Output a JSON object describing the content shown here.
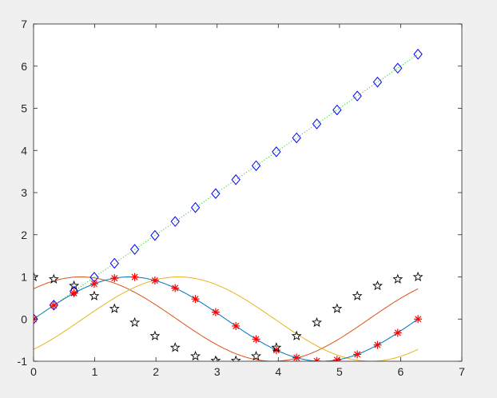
{
  "chart_data": {
    "type": "line",
    "title": "",
    "xlabel": "",
    "ylabel": "",
    "xlim": [
      0,
      7
    ],
    "ylim": [
      -1,
      7
    ],
    "x_ticks": [
      0,
      1,
      2,
      3,
      4,
      5,
      6,
      7
    ],
    "y_ticks": [
      -1,
      0,
      1,
      2,
      3,
      4,
      5,
      6,
      7
    ],
    "grid": false,
    "legend": "none",
    "colors": {
      "figure_background": "#f0f0f0",
      "axes_background": "#ffffff",
      "axis": "#262626"
    },
    "curve_x_range": [
      0,
      6.2832
    ],
    "series": [
      {
        "id": "linear",
        "formula": "y = x",
        "line": {
          "color": "#33cc33",
          "style": "dotted"
        },
        "marker": {
          "shape": "diamond",
          "color": "#0000ff"
        },
        "x": [
          0,
          0.3307,
          0.6614,
          0.992,
          1.3227,
          1.6534,
          1.9841,
          2.3148,
          2.6455,
          2.9762,
          3.3069,
          3.6376,
          3.9683,
          4.299,
          4.6296,
          4.9603,
          5.291,
          5.6217,
          5.9524,
          6.2832
        ],
        "y": [
          0,
          0.3307,
          0.6614,
          0.992,
          1.3227,
          1.6534,
          1.9841,
          2.3148,
          2.6455,
          2.9762,
          3.3069,
          3.6376,
          3.9683,
          4.299,
          4.6296,
          4.9603,
          5.291,
          5.6217,
          5.9524,
          6.2832
        ]
      },
      {
        "id": "sine",
        "formula": "y = sin(x)",
        "line": {
          "color": "#0072bd",
          "style": "solid"
        },
        "marker": {
          "shape": "asterisk",
          "color": "#ff0000"
        },
        "x": [
          0,
          0.3307,
          0.6614,
          0.992,
          1.3227,
          1.6534,
          1.9841,
          2.3148,
          2.6455,
          2.9762,
          3.3069,
          3.6376,
          3.9683,
          4.299,
          4.6296,
          4.9603,
          5.291,
          5.6217,
          5.9524,
          6.2832
        ],
        "y": [
          0,
          0.3247,
          0.6142,
          0.8372,
          0.9694,
          0.9966,
          0.9158,
          0.7357,
          0.4759,
          0.1646,
          -0.1646,
          -0.4759,
          -0.7357,
          -0.9158,
          -0.9966,
          -0.9694,
          -0.8372,
          -0.6142,
          -0.3247,
          0
        ]
      },
      {
        "id": "cosine-stars",
        "formula": "y = cos(x)",
        "line": {
          "color": "none",
          "style": "none"
        },
        "marker": {
          "shape": "pentagram",
          "color": "#000000"
        },
        "x": [
          0,
          0.3307,
          0.6614,
          0.992,
          1.3227,
          1.6534,
          1.9841,
          2.3148,
          2.6455,
          2.9762,
          3.3069,
          3.6376,
          3.9683,
          4.299,
          4.6296,
          4.9603,
          5.291,
          5.6217,
          5.9524,
          6.2832
        ],
        "y": [
          1,
          0.9458,
          0.7891,
          0.5469,
          0.2455,
          -0.0826,
          -0.4017,
          -0.6773,
          -0.8795,
          -0.9864,
          -0.9864,
          -0.8795,
          -0.6773,
          -0.4017,
          -0.0826,
          0.2455,
          0.5469,
          0.7891,
          0.9458,
          1
        ]
      },
      {
        "id": "shifted-orange",
        "formula": "y = sin(x + 0.8)",
        "line": {
          "color": "#d95319",
          "style": "solid"
        },
        "marker": {
          "shape": "none",
          "color": "none"
        }
      },
      {
        "id": "shifted-yellow",
        "formula": "y = sin(x - 0.8)",
        "line": {
          "color": "#edb120",
          "style": "solid"
        },
        "marker": {
          "shape": "none",
          "color": "none"
        }
      }
    ]
  }
}
